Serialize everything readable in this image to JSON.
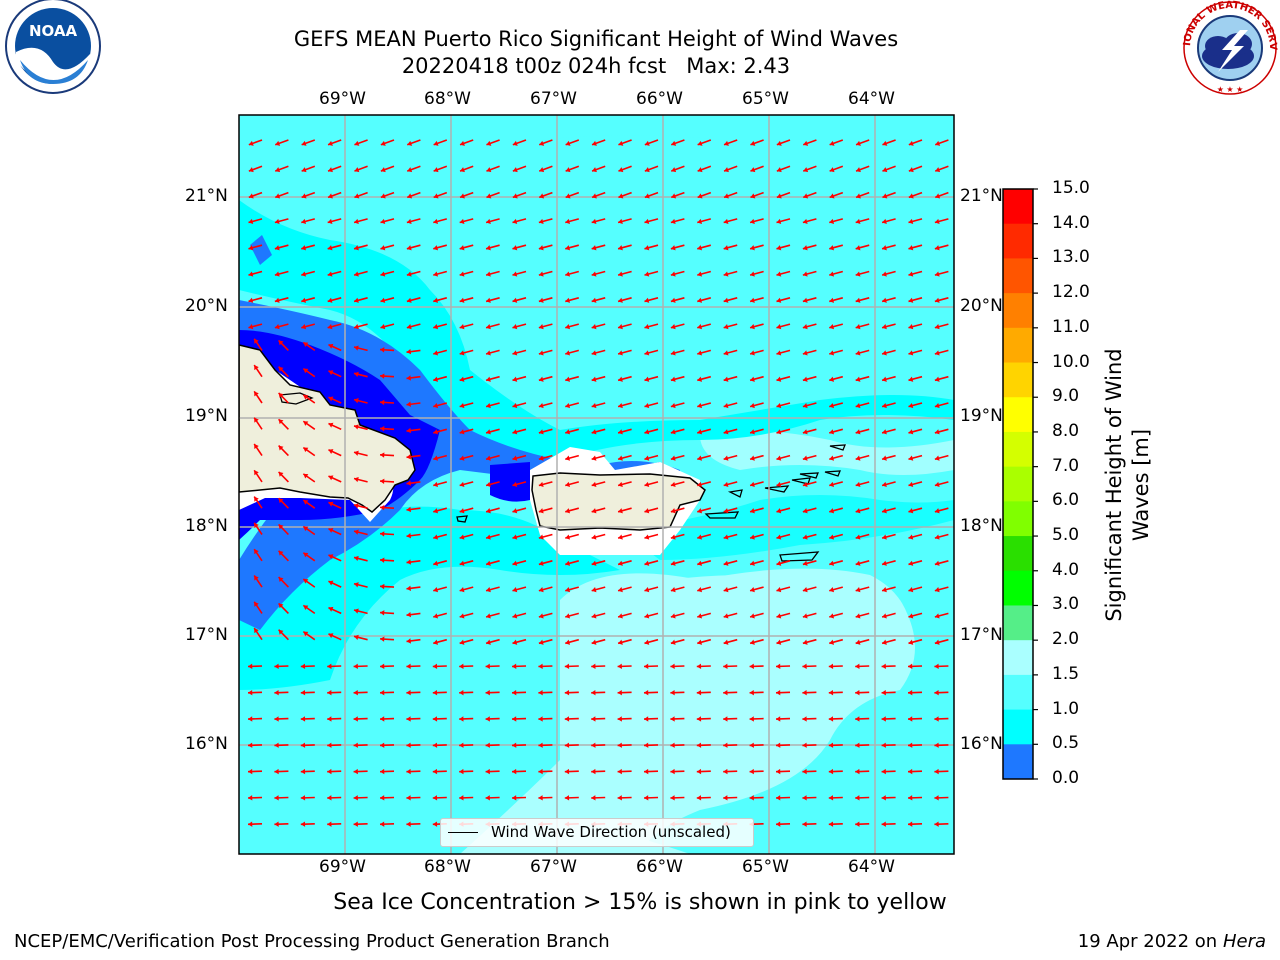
{
  "title": {
    "line1": "GEFS MEAN Puerto Rico Significant Height of Wind Waves",
    "line2": "20220418 t00z 024h fcst   Max: 2.43"
  },
  "map": {
    "lon_labels": [
      "69°W",
      "68°W",
      "67°W",
      "66°W",
      "65°W",
      "64°W"
    ],
    "lat_labels": [
      "21°N",
      "20°N",
      "19°N",
      "18°N",
      "17°N",
      "16°N"
    ],
    "legend_label": "Wind Wave Direction (unscaled)",
    "arrow_color": "#ff0000",
    "land_color": "#efefdc"
  },
  "colorbar": {
    "title": "Significant Height of Wind Waves [m]",
    "ticks": [
      "15.0",
      "14.0",
      "13.0",
      "12.0",
      "11.0",
      "10.0",
      "9.0",
      "8.0",
      "7.0",
      "6.0",
      "5.0",
      "4.0",
      "3.0",
      "2.0",
      "1.5",
      "1.0",
      "0.5",
      "0.0"
    ],
    "colors": [
      "#ff0000",
      "#ff2a00",
      "#ff5500",
      "#ff8000",
      "#ffaa00",
      "#ffd400",
      "#ffff00",
      "#d4ff00",
      "#aaff00",
      "#80ff00",
      "#2adf00",
      "#00ff00",
      "#55ee88",
      "#aaffff",
      "#55ffff",
      "#00ffff",
      "#1e78ff",
      "#0000ff"
    ]
  },
  "note": "Sea Ice Concentration > 15% is shown in pink to yellow",
  "footer": {
    "left": "NCEP/EMC/Verification Post Processing Product Generation Branch",
    "right_date": "19 Apr 2022 on",
    "right_machine": "Hera"
  },
  "logos": {
    "noaa": "NOAA",
    "nws": "NATIONAL WEATHER SERVICE"
  }
}
